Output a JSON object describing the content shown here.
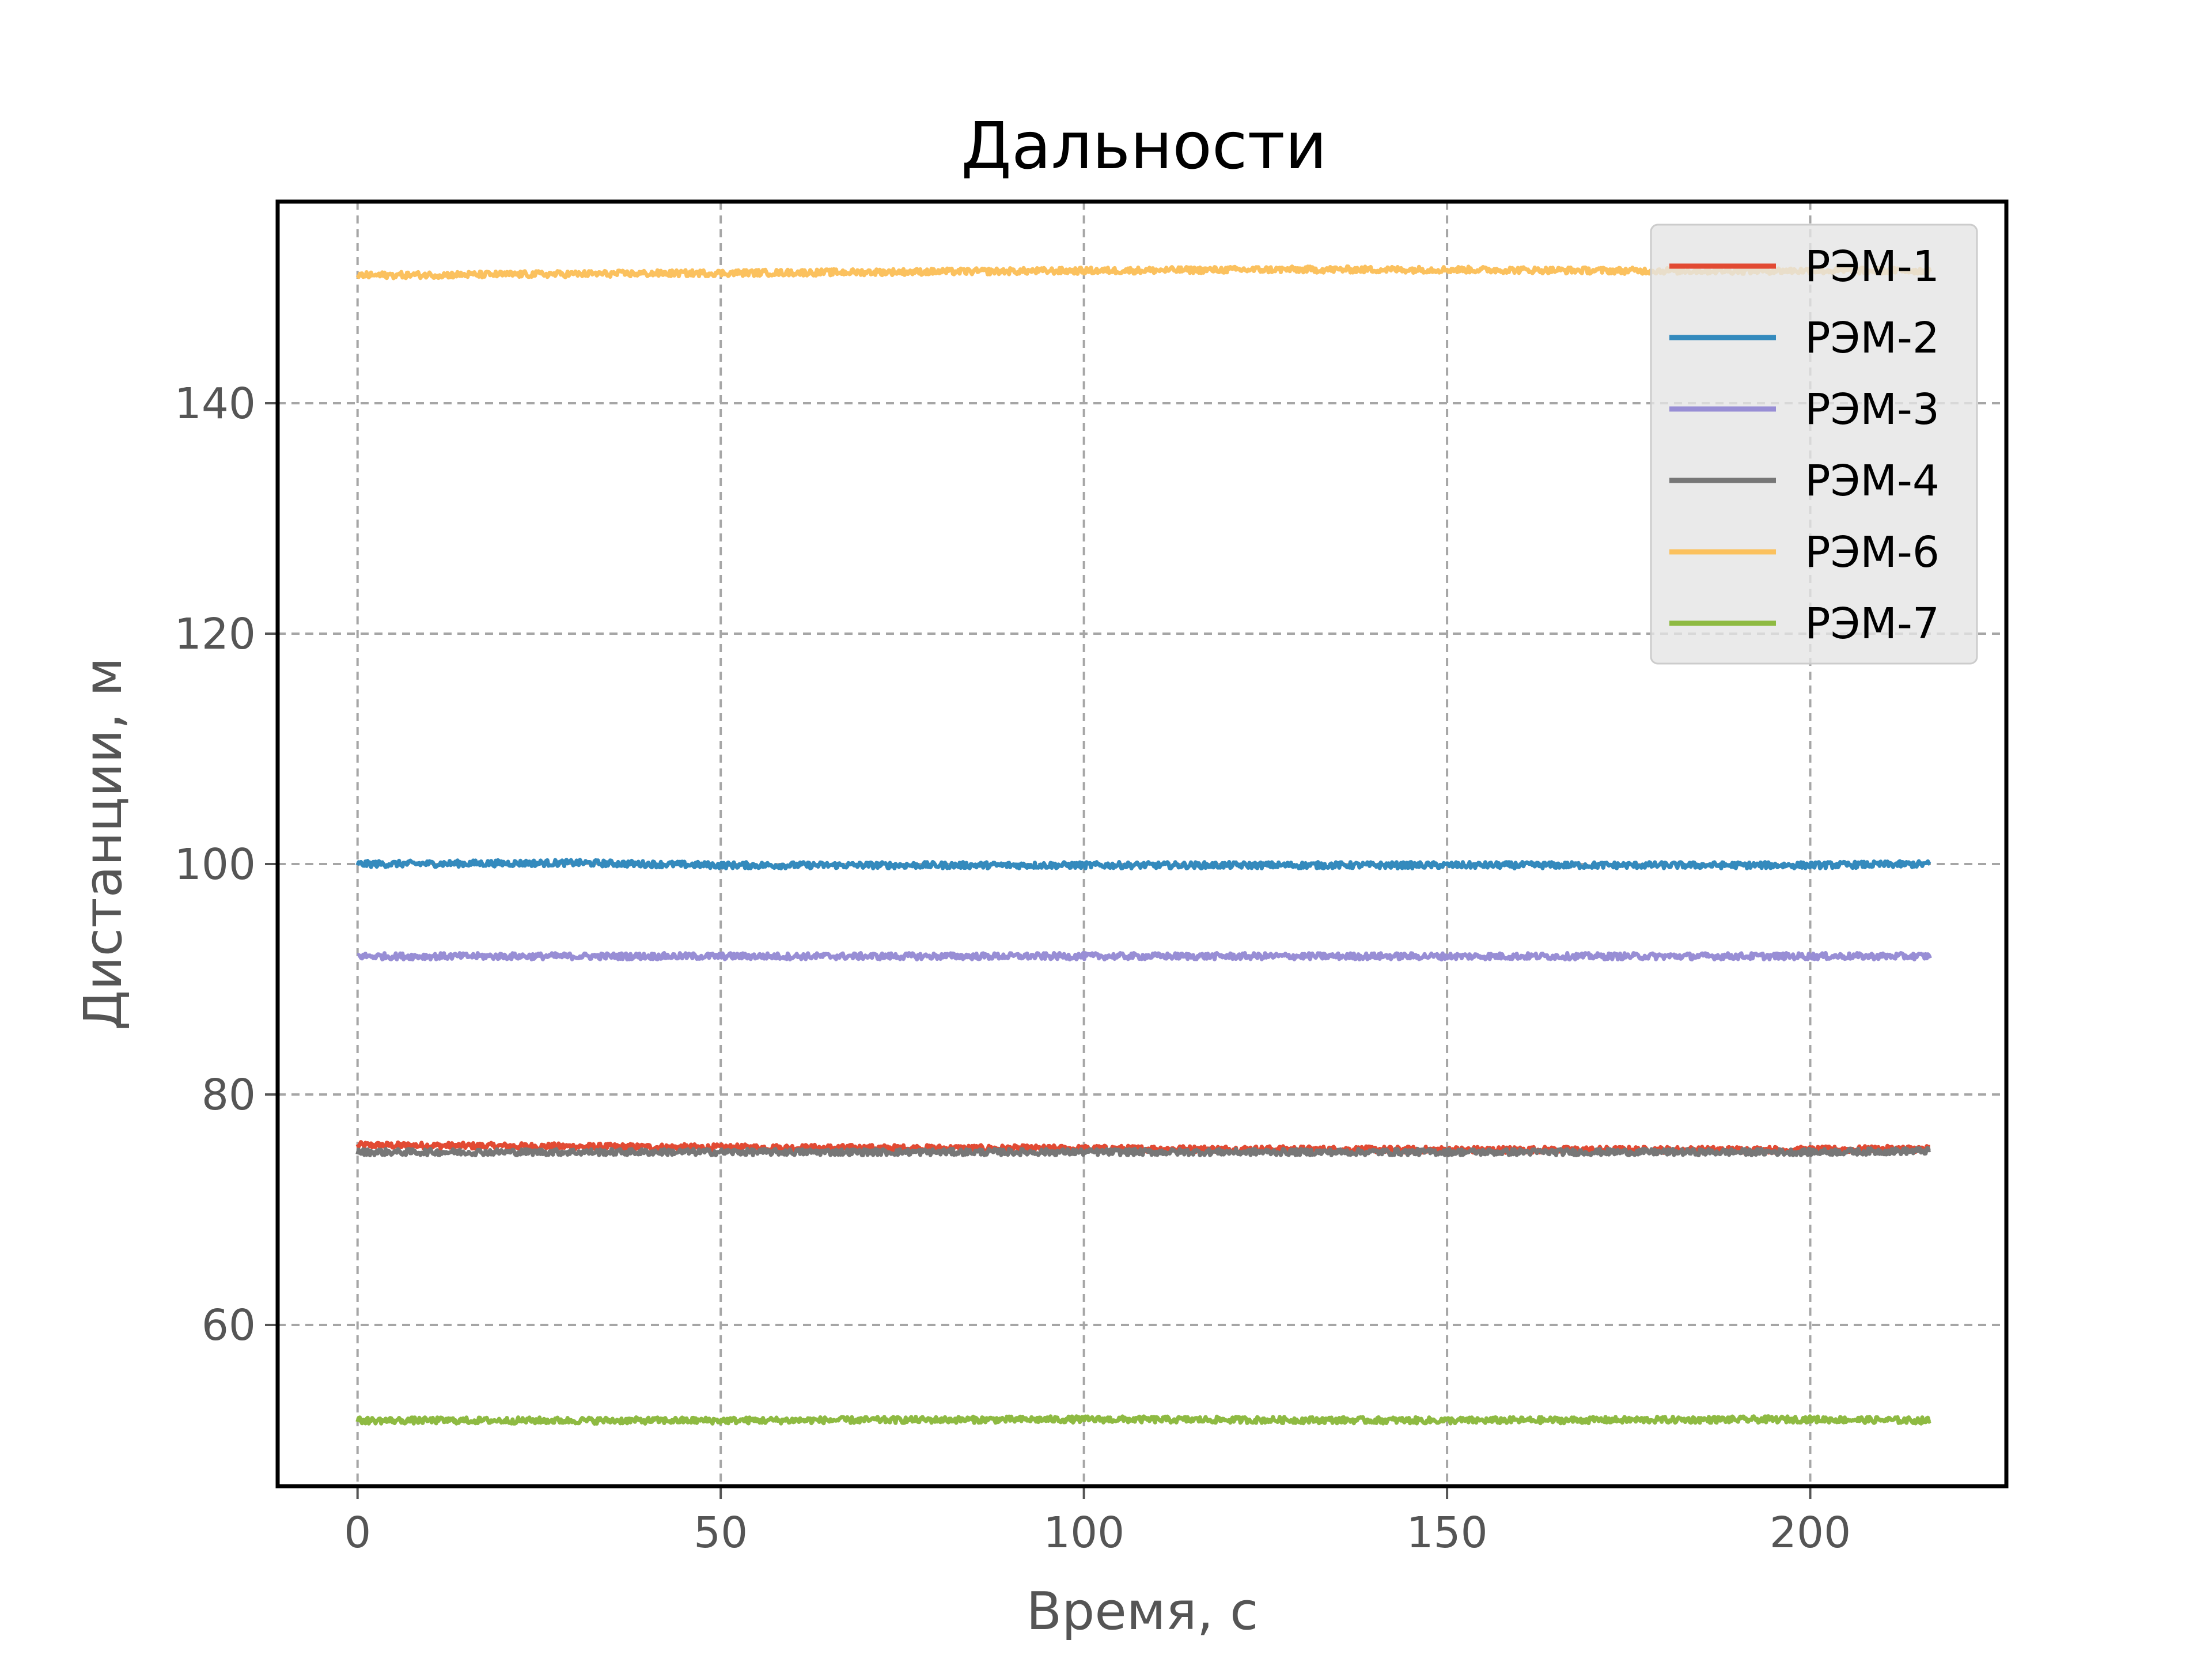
{
  "chart_data": {
    "type": "line",
    "title": "Дальности",
    "xlabel": "Время, с",
    "ylabel": "Дистанции, м",
    "xlim": [
      -11,
      227
    ],
    "ylim": [
      46,
      157.5
    ],
    "xticks": [
      0,
      50,
      100,
      150,
      200
    ],
    "yticks": [
      60,
      80,
      100,
      120,
      140
    ],
    "grid": true,
    "grid_style": "dashed",
    "legend_position": "upper right",
    "x_range": [
      0,
      216.5
    ],
    "series": [
      {
        "name": "РЭМ-1",
        "color": "#E24A33",
        "x": [
          0,
          50,
          100,
          150,
          200,
          216.5
        ],
        "values": [
          75.6,
          75.4,
          75.3,
          75.2,
          75.2,
          75.3
        ]
      },
      {
        "name": "РЭМ-2",
        "color": "#348ABD",
        "x": [
          0,
          30,
          50,
          100,
          150,
          200,
          216.5
        ],
        "values": [
          100.0,
          100.1,
          99.9,
          99.9,
          99.9,
          99.9,
          100.0
        ]
      },
      {
        "name": "РЭМ-3",
        "color": "#988ED5",
        "x": [
          0,
          50,
          100,
          150,
          200,
          216.5
        ],
        "values": [
          92.0,
          92.0,
          92.0,
          92.0,
          92.0,
          92.0
        ]
      },
      {
        "name": "РЭМ-4",
        "color": "#777777",
        "x": [
          0,
          50,
          100,
          150,
          200,
          216.5
        ],
        "values": [
          75.0,
          75.0,
          75.0,
          75.0,
          75.0,
          75.1
        ]
      },
      {
        "name": "РЭМ-6",
        "color": "#FBC15E",
        "x": [
          0,
          25,
          50,
          75,
          100,
          125,
          150,
          175,
          200,
          216.5
        ],
        "values": [
          151.1,
          151.2,
          151.3,
          151.4,
          151.5,
          151.6,
          151.6,
          151.5,
          151.5,
          151.5
        ]
      },
      {
        "name": "РЭМ-7",
        "color": "#8EBA42",
        "x": [
          0,
          50,
          100,
          150,
          200,
          216.5
        ],
        "values": [
          51.7,
          51.7,
          51.8,
          51.7,
          51.8,
          51.7
        ]
      }
    ]
  }
}
